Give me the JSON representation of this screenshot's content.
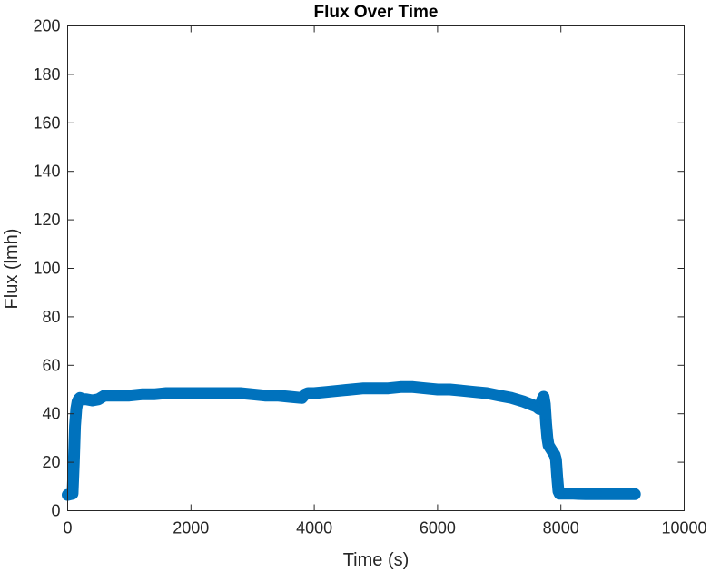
{
  "chart_data": {
    "type": "scatter",
    "title": "Flux Over Time",
    "xlabel": "Time (s)",
    "ylabel": "Flux (lmh)",
    "xlim": [
      0,
      10000
    ],
    "ylim": [
      0,
      200
    ],
    "xticks": [
      0,
      2000,
      4000,
      6000,
      8000,
      10000
    ],
    "yticks": [
      0,
      20,
      40,
      60,
      80,
      100,
      120,
      140,
      160,
      180,
      200
    ],
    "xtick_labels": [
      "0",
      "2000",
      "4000",
      "6000",
      "8000",
      "10000"
    ],
    "ytick_labels": [
      "0",
      "20",
      "40",
      "60",
      "80",
      "100",
      "120",
      "140",
      "160",
      "180",
      "200"
    ],
    "grid": false,
    "marker": "open-circle",
    "marker_color": "#0072BD",
    "series": [
      {
        "x": [
          0,
          80,
          100,
          120,
          140,
          160,
          180,
          200,
          250,
          300,
          400,
          500,
          600,
          800,
          1000,
          1200,
          1400,
          1600,
          1800,
          2000,
          2200,
          2400,
          2600,
          2800,
          3000,
          3200,
          3400,
          3600,
          3800,
          3850,
          3900,
          4000,
          4200,
          4400,
          4600,
          4800,
          5000,
          5200,
          5400,
          5600,
          5800,
          6000,
          6200,
          6400,
          6600,
          6800,
          7000,
          7200,
          7400,
          7600,
          7650,
          7700,
          7720,
          7740,
          7760,
          7780,
          7800,
          7850,
          7900,
          7920,
          7940,
          7960,
          7980,
          8000,
          8200,
          8400,
          8600,
          8800,
          9000,
          9200
        ],
        "y": [
          6.5,
          7,
          20,
          35,
          42,
          45,
          46,
          46.5,
          46,
          46,
          45.5,
          46,
          47.5,
          47.5,
          47.5,
          48,
          48,
          48.5,
          48.5,
          48.5,
          48.5,
          48.5,
          48.5,
          48.5,
          48,
          47.5,
          47.5,
          47,
          46.5,
          48,
          48.5,
          48.5,
          49,
          49.5,
          50,
          50.5,
          50.5,
          50.5,
          51,
          51,
          50.5,
          50,
          50,
          49.5,
          49,
          48.5,
          47.5,
          46.5,
          45,
          43,
          42,
          46,
          47,
          44,
          36,
          30,
          27,
          25,
          23,
          21,
          14,
          8,
          7,
          7,
          7,
          6.8,
          6.8,
          6.8,
          6.8,
          6.8
        ]
      }
    ]
  }
}
